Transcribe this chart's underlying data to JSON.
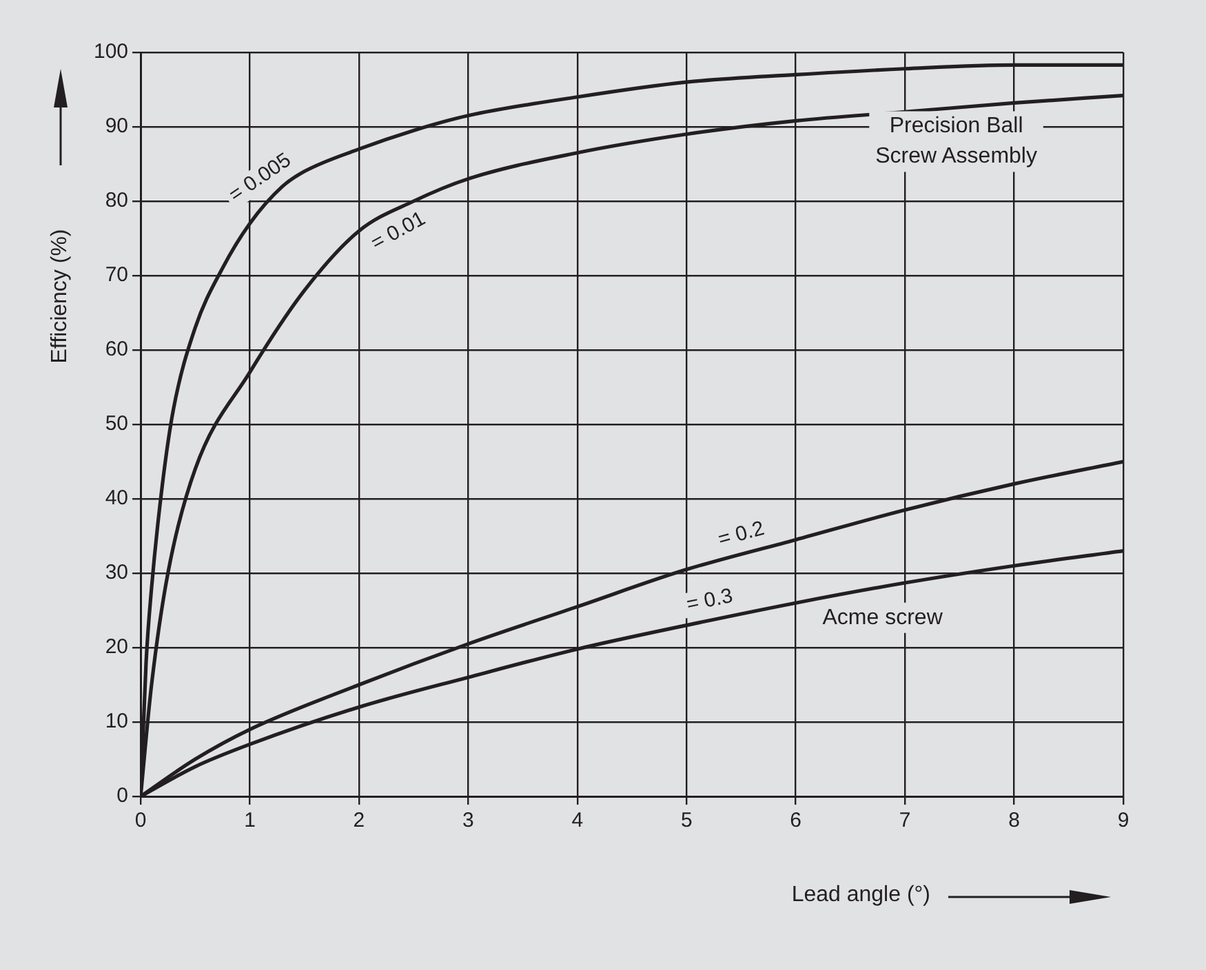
{
  "chart_data": {
    "type": "line",
    "xlabel": "Lead angle (°)",
    "ylabel": "Efficiency (%)",
    "xlim": [
      0,
      9
    ],
    "xticks": [
      0,
      1,
      2,
      3,
      4,
      5,
      6,
      7,
      8,
      9
    ],
    "ylim": [
      0,
      100
    ],
    "yticks": [
      0,
      10,
      20,
      30,
      40,
      50,
      60,
      70,
      80,
      90,
      100
    ],
    "grid": true,
    "legend": false,
    "marker": "none",
    "line_style": "solid",
    "annotations": [
      "Precision Ball\nScrew Assembly",
      "Acme screw"
    ],
    "series": [
      {
        "name": "= 0.005",
        "color": "#231f20",
        "x": [
          0,
          0.05,
          0.1,
          0.2,
          0.3,
          0.5,
          0.75,
          1,
          1.3,
          1.5,
          2,
          2.5,
          3,
          4,
          5,
          6,
          7,
          8,
          9
        ],
        "values": [
          0,
          18,
          28,
          42,
          52,
          63,
          71,
          77,
          82,
          84,
          87,
          89.5,
          91.5,
          94,
          96,
          97,
          97.8,
          98.3,
          98.3
        ]
      },
      {
        "name": "= 0.01",
        "color": "#231f20",
        "x": [
          0,
          0.1,
          0.25,
          0.5,
          1,
          1.5,
          2,
          2.5,
          3,
          4,
          5,
          6,
          7,
          8,
          9
        ],
        "values": [
          0,
          15,
          30,
          44,
          57,
          68,
          76,
          80,
          83,
          86.5,
          89,
          90.8,
          92,
          93.2,
          94.2
        ]
      },
      {
        "name": "= 0.2",
        "color": "#231f20",
        "x": [
          0,
          0.5,
          1,
          2,
          3,
          4,
          5,
          6,
          7,
          8,
          9
        ],
        "values": [
          0,
          5,
          9,
          15,
          20.5,
          25.5,
          30.5,
          34.5,
          38.5,
          42,
          45
        ]
      },
      {
        "name": "= 0.3",
        "color": "#231f20",
        "x": [
          0,
          0.5,
          1,
          2,
          3,
          4,
          5,
          6,
          7,
          8,
          9
        ],
        "values": [
          0,
          4,
          7,
          12,
          16,
          19.8,
          23,
          26,
          28.7,
          31,
          33
        ]
      }
    ]
  }
}
